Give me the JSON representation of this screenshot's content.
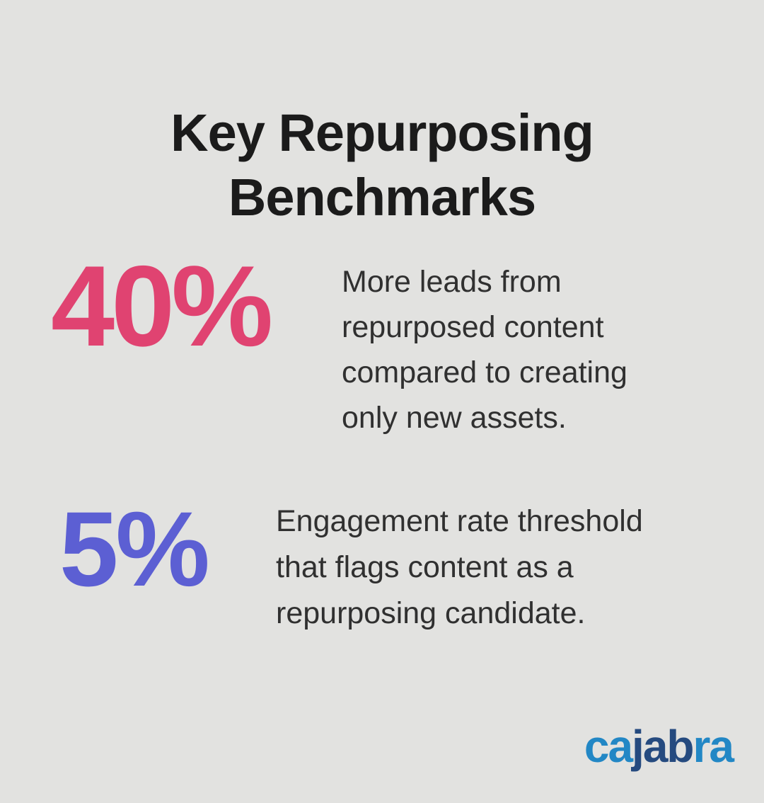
{
  "colors": {
    "background": "#e2e2e0",
    "title_color": "#1b1b1b",
    "body_color": "#303030",
    "stat1_color": "#e04371",
    "stat2_color": "#5c5fd3",
    "logo_light": "#2287c5",
    "logo_dark": "#254a7f"
  },
  "title": {
    "full": "Key Repurposing Benchmarks",
    "line1": "Key Repurposing",
    "line2": "Benchmarks"
  },
  "stats": [
    {
      "value": "40%",
      "description": "More leads from repurposed content compared to creating only new assets.",
      "description_lines": [
        "More leads from",
        "repurposed content",
        "compared to creating",
        "only new assets."
      ]
    },
    {
      "value": "5%",
      "description": "Engagement rate threshold that flags content as a repurposing candidate.",
      "description_lines": [
        "Engagement rate threshold",
        "that flags content as a",
        "repurposing candidate."
      ]
    }
  ],
  "logo": {
    "text": "cajabra",
    "letters": [
      {
        "char": "c",
        "tone": "light"
      },
      {
        "char": "a",
        "tone": "light"
      },
      {
        "char": "j",
        "tone": "dark"
      },
      {
        "char": "a",
        "tone": "dark"
      },
      {
        "char": "b",
        "tone": "dark"
      },
      {
        "char": "r",
        "tone": "light"
      },
      {
        "char": "a",
        "tone": "light"
      }
    ]
  }
}
